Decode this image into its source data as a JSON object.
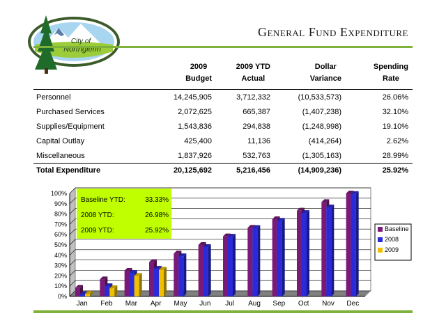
{
  "logo": {
    "text_line1": "City of",
    "text_line2": "Northglenn"
  },
  "title": "General Fund Expenditure",
  "table": {
    "headers": [
      {
        "line1": "",
        "line2": ""
      },
      {
        "line1": "2009",
        "line2": "Budget"
      },
      {
        "line1": "2009 YTD",
        "line2": "Actual"
      },
      {
        "line1": "Dollar",
        "line2": "Variance"
      },
      {
        "line1": "Spending",
        "line2": "Rate"
      }
    ],
    "rows": [
      [
        "Personnel",
        "14,245,905",
        "3,712,332",
        "(10,533,573)",
        "26.06%"
      ],
      [
        "Purchased Services",
        "2,072,625",
        "665,387",
        "(1,407,238)",
        "32.10%"
      ],
      [
        "Supplies/Equipment",
        "1,543,836",
        "294,838",
        "(1,248,998)",
        "19.10%"
      ],
      [
        "Capital Outlay",
        "425,400",
        "11,136",
        "(414,264)",
        "2.62%"
      ],
      [
        "Miscellaneous",
        "1,837,926",
        "532,763",
        "(1,305,163)",
        "28.99%"
      ]
    ],
    "total": [
      "Total Expenditure",
      "20,125,692",
      "5,216,456",
      "(14,909,236)",
      "25.92%"
    ]
  },
  "chart_data": {
    "type": "bar",
    "categories": [
      "Jan",
      "Feb",
      "Mar",
      "Apr",
      "May",
      "Jun",
      "Jul",
      "Aug",
      "Sep",
      "Oct",
      "Nov",
      "Dec"
    ],
    "series": [
      {
        "name": "Baseline",
        "color": "#7a1a78",
        "values": [
          8.33,
          16.67,
          25,
          33.33,
          41.67,
          50,
          58.33,
          66.67,
          75,
          83.33,
          91.67,
          100
        ]
      },
      {
        "name": "2008",
        "color": "#2a2ad8",
        "values": [
          2,
          10,
          23,
          26.98,
          39,
          48,
          58,
          66.5,
          73.5,
          81,
          86.5,
          99.5
        ]
      },
      {
        "name": "2009",
        "color": "#f0c000",
        "values": [
          2.5,
          8,
          20,
          25.92,
          null,
          null,
          null,
          null,
          null,
          null,
          null,
          null
        ]
      }
    ],
    "ylim": [
      0,
      100
    ],
    "yticks": [
      "0%",
      "10%",
      "20%",
      "30%",
      "40%",
      "50%",
      "60%",
      "70%",
      "80%",
      "90%",
      "100%"
    ],
    "grid": true,
    "legend_position": "right",
    "annotation": {
      "background": "#bfff00",
      "rows": [
        {
          "label": "Baseline YTD:",
          "value": "33.33%"
        },
        {
          "label": "2008 YTD:",
          "value": "26.98%"
        },
        {
          "label": "2009 YTD:",
          "value": "25.92%"
        }
      ]
    }
  }
}
